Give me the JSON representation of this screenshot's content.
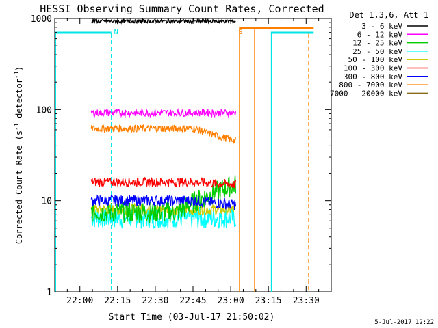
{
  "title": "HESSI Observing Summary Count Rates, Corrected",
  "footer_date": "5-Jul-2017 12:22",
  "chart_data": {
    "type": "line",
    "title": "HESSI Observing Summary Count Rates, Corrected",
    "xlabel": "Start Time (03-Jul-17 21:50:02)",
    "ylabel": "Corrected Count Rate (s⁻¹ detector⁻¹)",
    "ylabel_main": "Corrected Count Rate (s",
    "ylabel_sup1": "-1",
    "ylabel_mid": " detector",
    "ylabel_sup2": "-1",
    "ylabel_end": ")",
    "y_scale": "log",
    "ylim": [
      1,
      1000
    ],
    "xlim_minutes": [
      -10,
      100
    ],
    "x_ticks": [
      {
        "label": "22:00",
        "min": 0
      },
      {
        "label": "22:15",
        "min": 15
      },
      {
        "label": "22:30",
        "min": 30
      },
      {
        "label": "22:45",
        "min": 45
      },
      {
        "label": "23:00",
        "min": 60
      },
      {
        "label": "23:15",
        "min": 75
      },
      {
        "label": "23:30",
        "min": 90
      }
    ],
    "y_ticks": [
      {
        "label": "1",
        "value": 1
      },
      {
        "label": "10",
        "value": 10
      },
      {
        "label": "100",
        "value": 100
      },
      {
        "label": "1000",
        "value": 1000
      }
    ],
    "legend_title": "Det 1,3,6, Att 1",
    "legend_placement": "right",
    "series": [
      {
        "name": "3 - 6 keV",
        "color": "#000000",
        "level": 930,
        "end": 930,
        "jitter": 0.02
      },
      {
        "name": "6 - 12 keV",
        "color": "#ff00ff",
        "level": 92,
        "end": 92,
        "jitter": 0.04
      },
      {
        "name": "12 - 25 keV",
        "color": "#00cc00",
        "level": 7.5,
        "end": 14,
        "jitter": 0.12
      },
      {
        "name": "25 - 50 keV",
        "color": "#00ffff",
        "level": 6.5,
        "end": 6.5,
        "jitter": 0.12
      },
      {
        "name": "50 - 100 keV",
        "color": "#cccc00",
        "level": 8,
        "end": 8,
        "jitter": 0.06
      },
      {
        "name": "100 - 300 keV",
        "color": "#ff0000",
        "level": 16,
        "end": 15,
        "jitter": 0.05
      },
      {
        "name": "300 - 800 keV",
        "color": "#0000ff",
        "level": 10,
        "end": 9,
        "jitter": 0.06
      },
      {
        "name": "800 - 7000 keV",
        "color": "#ff8000",
        "level": 62,
        "end": 45,
        "jitter": 0.04
      },
      {
        "name": "7000 - 20000 keV",
        "color": "#8a6a1a",
        "level": 0,
        "end": 0,
        "jitter": 0
      }
    ],
    "data_interval_minutes": [
      4.5,
      62
    ],
    "annotations": [
      {
        "label": "N",
        "x_min": 12.5,
        "color": "#00e5e5"
      },
      {
        "label": "S",
        "x_min": 62,
        "color": "#ff8000"
      }
    ],
    "night_dashed_lines_minutes": [
      12.5,
      91
    ],
    "night_solid_lines_minutes": [
      -10,
      76
    ],
    "saa_solid_lines_minutes": [
      63.5,
      69.5
    ],
    "saa_dashed_line_minutes": 93
  }
}
